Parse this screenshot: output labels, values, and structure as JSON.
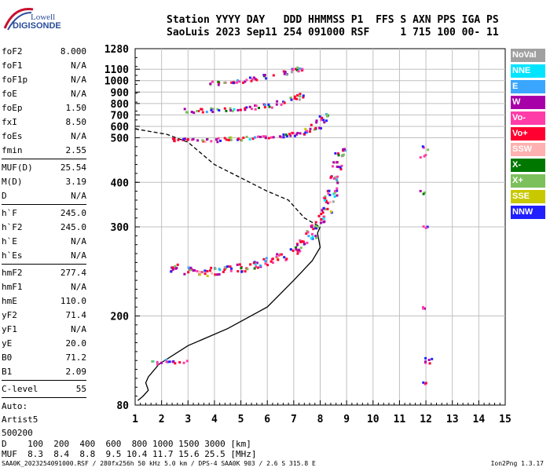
{
  "logo": {
    "line1": "Lowell",
    "line2": "DIGISONDE"
  },
  "header": {
    "line1": "Station YYYY DAY   DDD HHMMSS P1  FFS S AXN PPS IGA PS",
    "line2": "SaoLuis 2023 Sep11 254 091000 RSF     1 715 100 00- 11"
  },
  "params": {
    "group1": [
      {
        "label": "foF2",
        "value": "8.000"
      },
      {
        "label": "foF1",
        "value": "N/A"
      },
      {
        "label": "foF1p",
        "value": "N/A"
      },
      {
        "label": "foE",
        "value": "N/A"
      },
      {
        "label": "foEp",
        "value": "1.50"
      },
      {
        "label": "fxI",
        "value": "8.50"
      },
      {
        "label": "foEs",
        "value": "N/A"
      },
      {
        "label": "fmin",
        "value": "2.55"
      }
    ],
    "group2": [
      {
        "label": "MUF(D)",
        "value": "25.54"
      },
      {
        "label": "M(D)",
        "value": "3.19"
      },
      {
        "label": "D",
        "value": "N/A"
      }
    ],
    "group3": [
      {
        "label": "h`F",
        "value": "245.0"
      },
      {
        "label": "h`F2",
        "value": "245.0"
      },
      {
        "label": "h`E",
        "value": "N/A"
      },
      {
        "label": "h`Es",
        "value": "N/A"
      }
    ],
    "group4": [
      {
        "label": "hmF2",
        "value": "277.4"
      },
      {
        "label": "hmF1",
        "value": "N/A"
      },
      {
        "label": "hmE",
        "value": "110.0"
      },
      {
        "label": "yF2",
        "value": "71.4"
      },
      {
        "label": "yF1",
        "value": "N/A"
      },
      {
        "label": "yE",
        "value": "20.0"
      },
      {
        "label": "B0",
        "value": "71.2"
      },
      {
        "label": "B1",
        "value": "2.09"
      }
    ],
    "clevel": {
      "label": "C-level",
      "value": "55"
    },
    "auto": [
      "Auto:",
      "Artist5",
      "500200"
    ]
  },
  "legend": [
    {
      "label": "NoVal",
      "color": "#a0a0a0"
    },
    {
      "label": "NNE",
      "color": "#00e4ff"
    },
    {
      "label": "E",
      "color": "#3aa6ff"
    },
    {
      "label": "W",
      "color": "#a800a8"
    },
    {
      "label": "Vo-",
      "color": "#ff3ca8"
    },
    {
      "label": "Vo+",
      "color": "#ff0030"
    },
    {
      "label": "SSW",
      "color": "#ffb0b0"
    },
    {
      "label": "X-",
      "color": "#007800"
    },
    {
      "label": "X+",
      "color": "#7cc05c"
    },
    {
      "label": "SSE",
      "color": "#c8c800"
    },
    {
      "label": "NNW",
      "color": "#2020ff"
    }
  ],
  "chart_data": {
    "type": "scatter",
    "xlim": [
      1,
      15
    ],
    "x_ticks": [
      1,
      2,
      3,
      4,
      5,
      6,
      7,
      8,
      9,
      10,
      11,
      12,
      13,
      14,
      15
    ],
    "y_ticks": [
      80,
      200,
      300,
      400,
      500,
      600,
      700,
      800,
      900,
      1000,
      1100,
      1280
    ],
    "y_scale": "piecewise",
    "y_mapping": [
      [
        80,
        200
      ],
      [
        200,
        300
      ],
      [
        300,
        500
      ],
      [
        500,
        1280
      ]
    ],
    "grid": true,
    "traces": [
      {
        "name": "profile",
        "style": "solid",
        "color": "#000000",
        "points": [
          [
            1.1,
            86
          ],
          [
            1.3,
            92
          ],
          [
            1.5,
            100
          ],
          [
            1.4,
            110
          ],
          [
            1.5,
            118
          ],
          [
            1.9,
            135
          ],
          [
            3.0,
            160
          ],
          [
            4.5,
            183
          ],
          [
            6.0,
            210
          ],
          [
            7.0,
            240
          ],
          [
            7.7,
            262
          ],
          [
            8.0,
            277
          ],
          [
            7.9,
            293
          ],
          [
            8.0,
            300
          ]
        ]
      },
      {
        "name": "extrapolated",
        "style": "dashed",
        "color": "#000000",
        "points": [
          [
            1.0,
            578
          ],
          [
            1.5,
            558
          ],
          [
            2.2,
            530
          ],
          [
            3.0,
            490
          ],
          [
            4.0,
            440
          ],
          [
            5.0,
            410
          ],
          [
            6.0,
            380
          ],
          [
            6.8,
            360
          ],
          [
            7.4,
            320
          ],
          [
            8.0,
            300
          ]
        ]
      },
      {
        "name": "F2 1-hop",
        "style": "points",
        "points": [
          [
            2.5,
            255
          ],
          [
            3.0,
            252
          ],
          [
            3.5,
            250
          ],
          [
            4.0,
            251
          ],
          [
            4.5,
            253
          ],
          [
            5.0,
            255
          ],
          [
            5.5,
            258
          ],
          [
            6.0,
            262
          ],
          [
            6.5,
            268
          ],
          [
            7.0,
            275
          ],
          [
            7.3,
            282
          ],
          [
            7.6,
            292
          ],
          [
            7.8,
            300
          ],
          [
            8.0,
            318
          ],
          [
            8.2,
            340
          ],
          [
            8.3,
            362
          ],
          [
            8.4,
            380
          ],
          [
            8.5,
            410
          ],
          [
            8.6,
            440
          ],
          [
            8.7,
            470
          ]
        ]
      },
      {
        "name": "F2 2-hop",
        "style": "points",
        "points": [
          [
            2.6,
            498
          ],
          [
            3.0,
            497
          ],
          [
            3.5,
            496
          ],
          [
            4.0,
            497
          ],
          [
            4.5,
            500
          ],
          [
            5.0,
            502
          ],
          [
            5.5,
            506
          ],
          [
            6.0,
            513
          ],
          [
            6.5,
            523
          ],
          [
            7.0,
            540
          ],
          [
            7.3,
            555
          ],
          [
            7.6,
            578
          ],
          [
            7.8,
            605
          ],
          [
            8.0,
            650
          ],
          [
            8.05,
            700
          ]
        ]
      },
      {
        "name": "F2 3-hop",
        "style": "points",
        "points": [
          [
            3.0,
            745
          ],
          [
            3.5,
            747
          ],
          [
            4.0,
            752
          ],
          [
            4.5,
            758
          ],
          [
            5.0,
            765
          ],
          [
            5.5,
            775
          ],
          [
            6.0,
            790
          ],
          [
            6.5,
            815
          ],
          [
            7.0,
            850
          ],
          [
            7.2,
            880
          ]
        ]
      },
      {
        "name": "F2 4-hop",
        "style": "points",
        "points": [
          [
            4.0,
            988
          ],
          [
            4.5,
            998
          ],
          [
            5.0,
            1005
          ],
          [
            5.5,
            1020
          ],
          [
            6.0,
            1045
          ],
          [
            6.5,
            1075
          ],
          [
            7.0,
            1100
          ],
          [
            7.2,
            1108
          ]
        ]
      },
      {
        "name": "low echo",
        "style": "points",
        "points": [
          [
            1.8,
            140
          ],
          [
            2.0,
            139
          ],
          [
            2.2,
            140
          ],
          [
            2.5,
            139
          ],
          [
            2.8,
            139
          ]
        ]
      },
      {
        "name": "isolated",
        "style": "points",
        "points": [
          [
            11.9,
            480
          ],
          [
            11.9,
            460
          ],
          [
            11.9,
            380
          ],
          [
            11.9,
            300
          ],
          [
            11.9,
            210
          ],
          [
            11.9,
            140
          ],
          [
            11.95,
            110
          ],
          [
            12.1,
            145
          ]
        ]
      }
    ]
  },
  "footer": {
    "line1": "D    100  200  400  600  800 1000 1500 3000 [km]",
    "line2": "MUF  8.3  8.4  8.8  9.5 10.4 11.7 15.6 25.5 [MHz]",
    "file": "SAA0K_2023254091000.RSF / 280fx256h 50 kHz 5.0 km / DPS-4 SAA0K 903 / 2.6 S 315.8 E",
    "version": "Ion2Png 1.3.17"
  }
}
